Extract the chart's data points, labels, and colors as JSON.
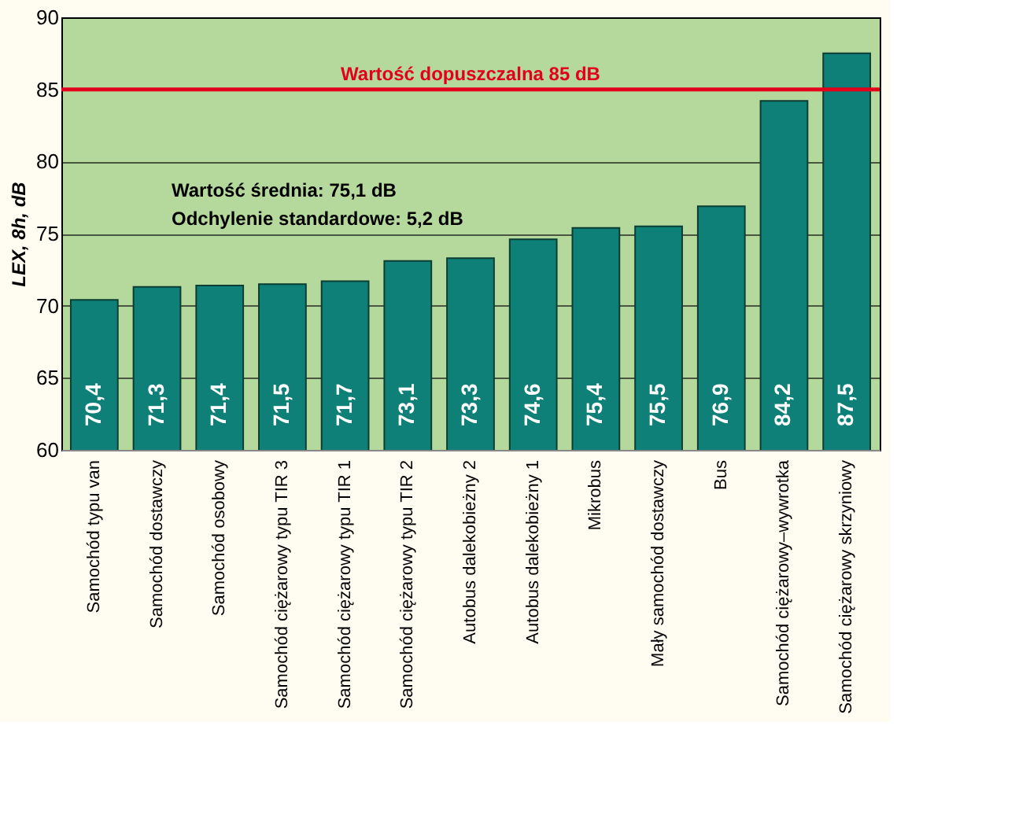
{
  "chart_data": {
    "type": "bar",
    "ylabel": "LEX, 8h, dB",
    "categories": [
      "Samochód typu van",
      "Samochód dostawczy",
      "Samochód osobowy",
      "Samochód ciężarowy typu TIR 3",
      "Samochód ciężarowy typu TIR 1",
      "Samochód ciężarowy typu TIR 2",
      "Autobus dalekobieżny 2",
      "Autobus dalekobieżny 1",
      "Mikrobus",
      "Mały samochód dostawczy",
      "Bus",
      "Samochód ciężarowy–wywrotka",
      "Samochód ciężarowy skrzyniowy"
    ],
    "values": [
      70.4,
      71.3,
      71.4,
      71.5,
      71.7,
      73.1,
      73.3,
      74.6,
      75.4,
      75.5,
      76.9,
      84.2,
      87.5
    ],
    "value_labels": [
      "70,4",
      "71,3",
      "71,4",
      "71,5",
      "71,7",
      "73,1",
      "73,3",
      "74,6",
      "75,4",
      "75,5",
      "76,9",
      "84,2",
      "87,5"
    ],
    "color": "#0e8078",
    "ylim": [
      60,
      90
    ],
    "yticks": [
      60,
      65,
      70,
      75,
      80,
      85,
      90
    ],
    "grid": "y",
    "ref_lines": [
      {
        "axis": "y",
        "value": 85,
        "label": "Wartość dopuszczalna 85 dB",
        "color": "#e3001b",
        "line_style": "solid"
      }
    ],
    "annotations": [
      "Wartość średnia: 75,1 dB",
      "Odchylenie standardowe: 5,2 dB"
    ]
  }
}
